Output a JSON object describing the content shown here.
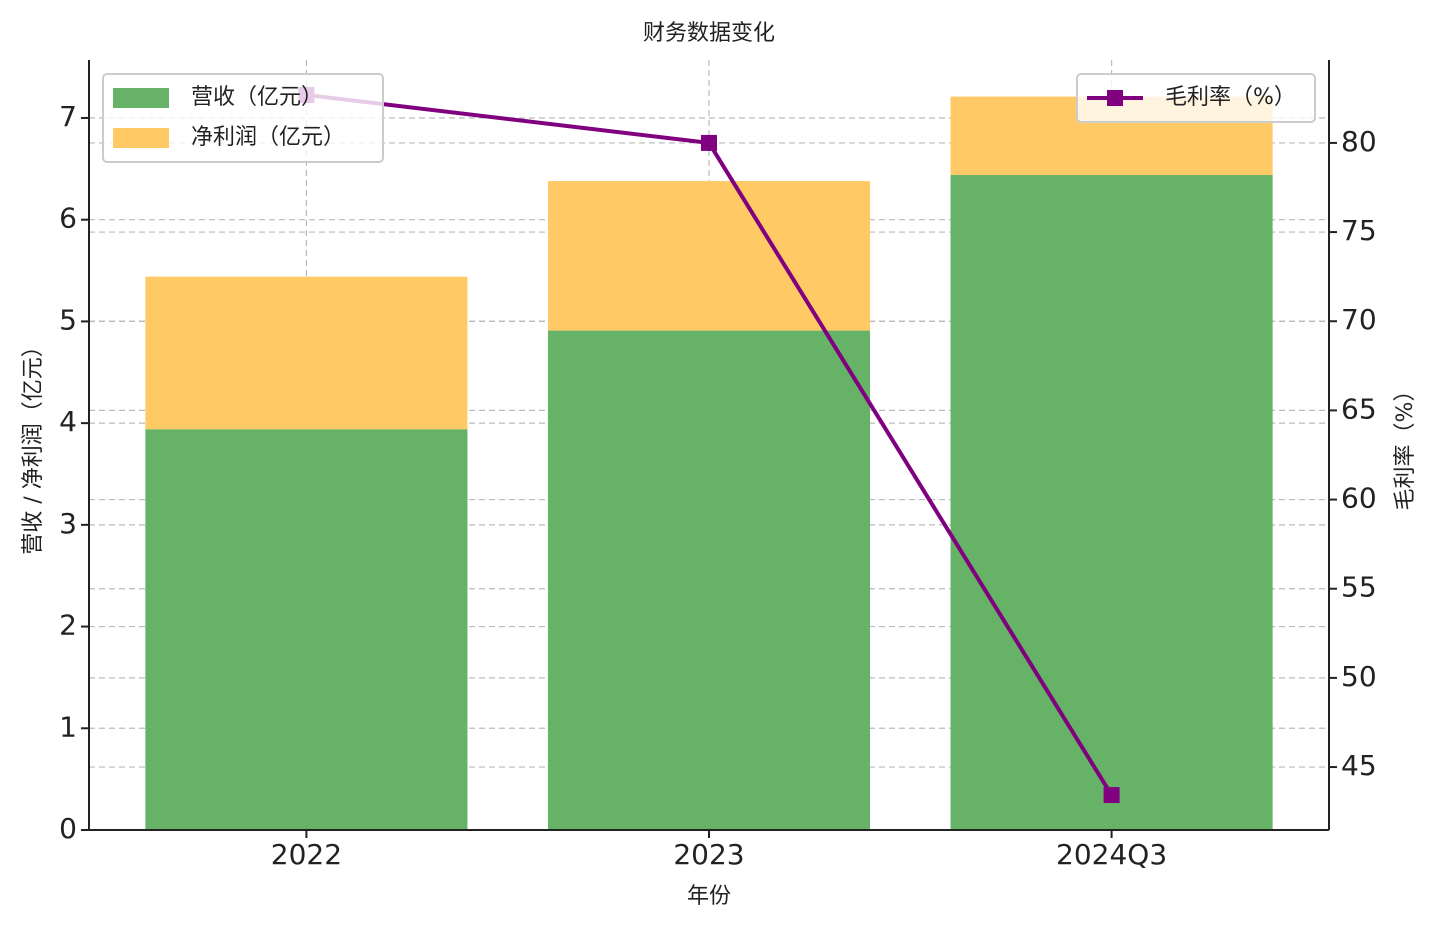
{
  "chart_data": {
    "type": "bar",
    "title": "财务数据变化",
    "xlabel": "年份",
    "ylabel": "营收 / 净利润（亿元）",
    "y2label": "毛利率（%）",
    "categories": [
      "2022",
      "2023",
      "2024Q3"
    ],
    "series": [
      {
        "name": "营收（亿元）",
        "type": "bar",
        "color": "#66b266",
        "values": [
          3.94,
          4.91,
          6.44
        ]
      },
      {
        "name": "净利润（亿元）",
        "type": "bar",
        "color": "#ffc966",
        "values": [
          1.5,
          1.47,
          0.77
        ]
      },
      {
        "name": "毛利率（%）",
        "type": "line",
        "axis": "y2",
        "color": "#800080",
        "values": [
          82.69,
          80,
          43.43
        ]
      }
    ],
    "ylim": [
      0,
      7.57
    ],
    "yticks": [
      0,
      1,
      2,
      3,
      4,
      5,
      6,
      7
    ],
    "y2lim": [
      41.47,
      84.65
    ],
    "y2ticks": [
      45,
      50,
      55,
      60,
      65,
      70,
      75,
      80
    ],
    "grid": true,
    "legend": "upper left",
    "legend2": "upper right"
  }
}
